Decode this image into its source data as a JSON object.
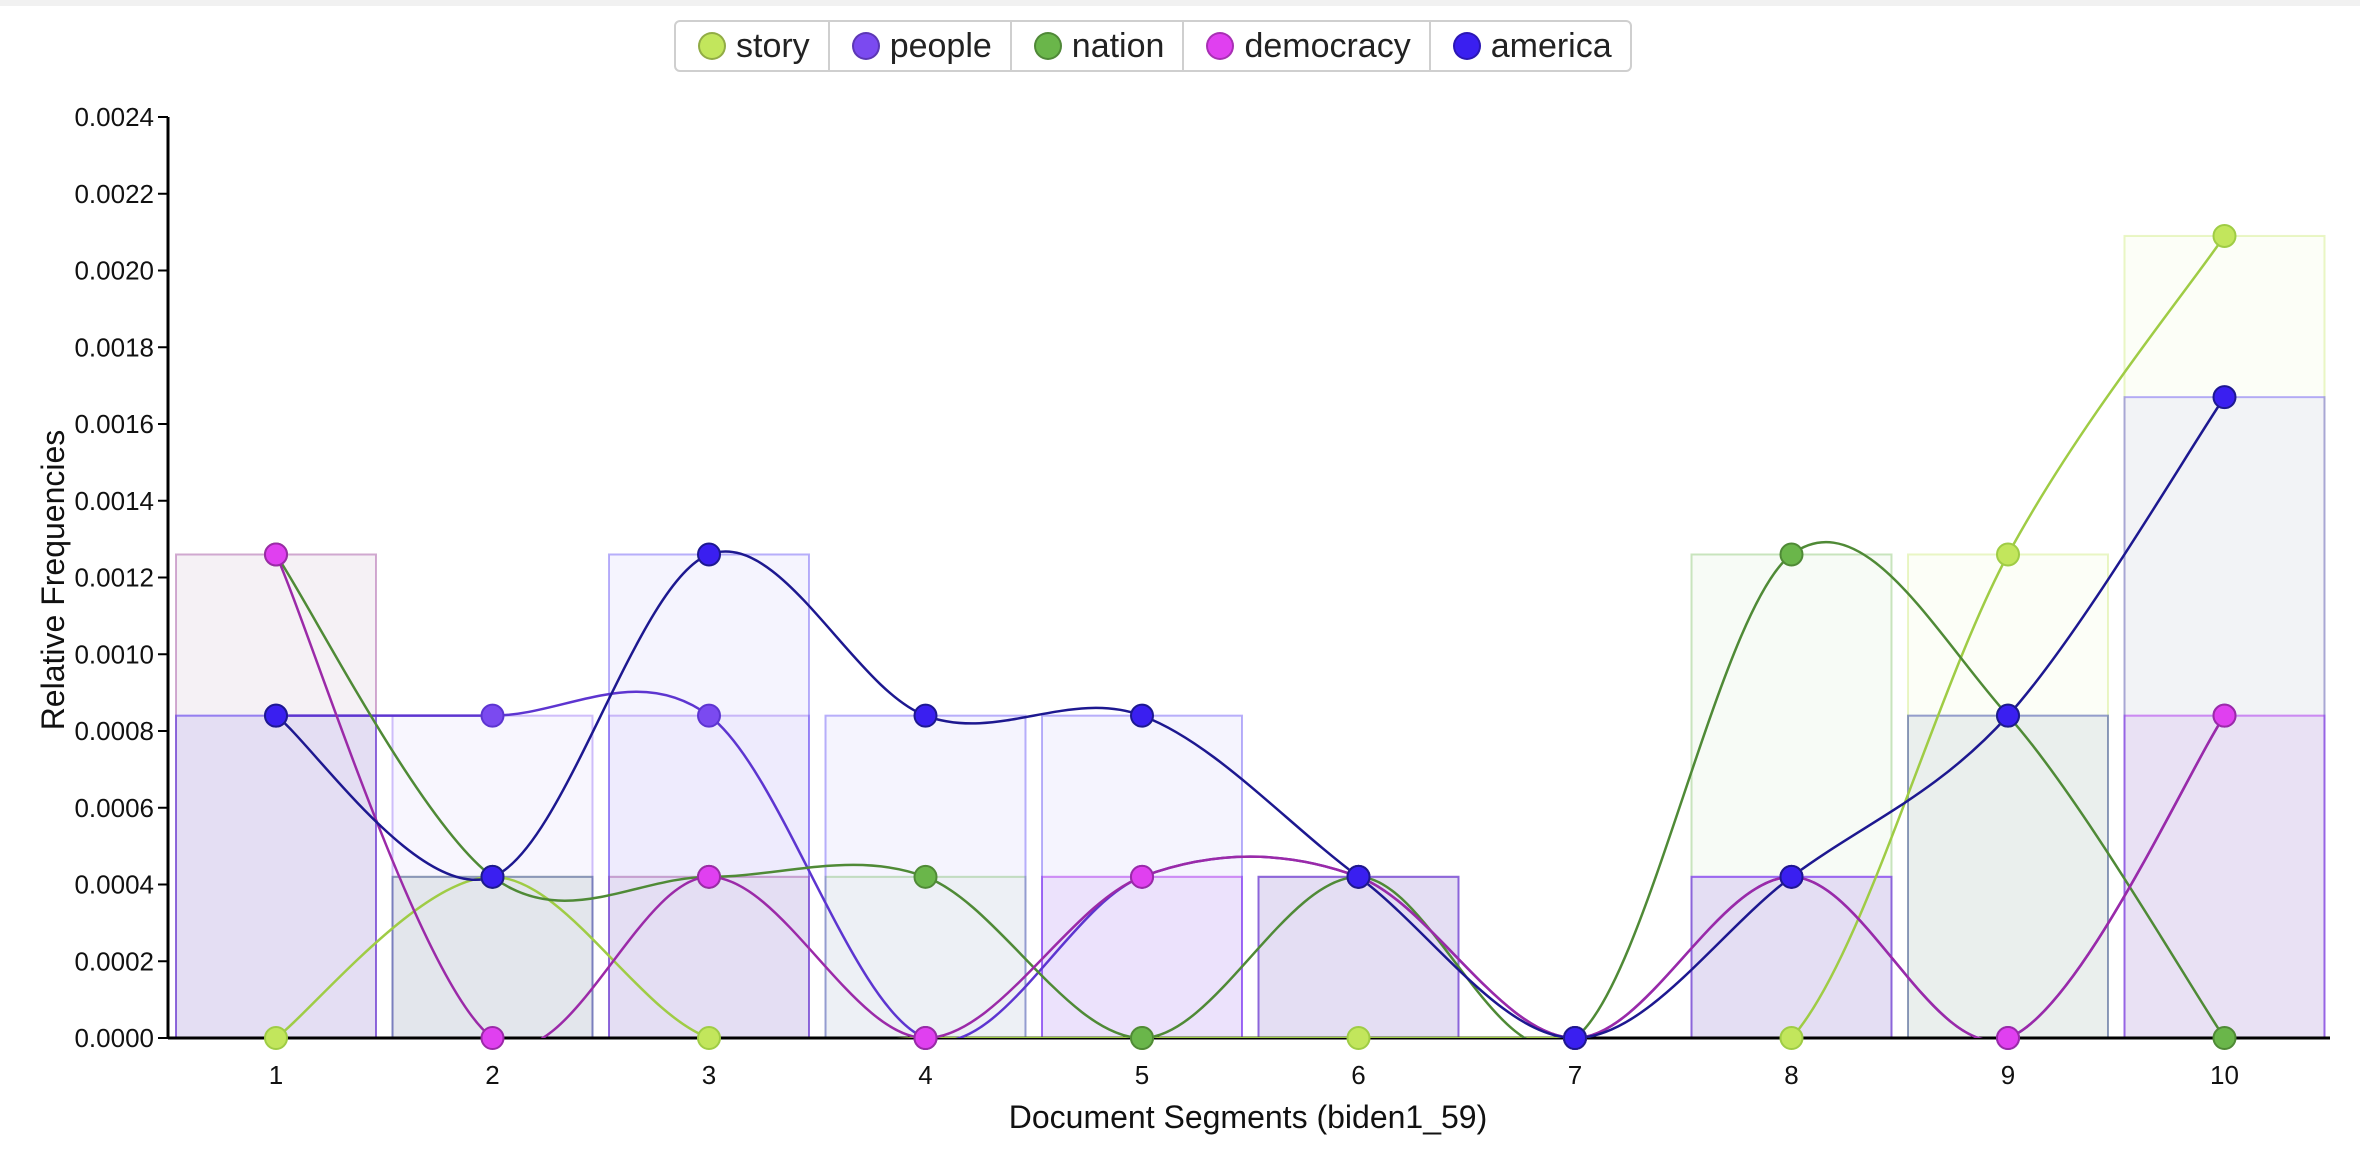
{
  "chart_data": {
    "type": "line",
    "xlabel": "Document Segments (biden1_59)",
    "ylabel": "Relative Frequencies",
    "ylim": [
      0,
      0.0024
    ],
    "y_ticks": [
      "0.0000",
      "0.0002",
      "0.0004",
      "0.0006",
      "0.0008",
      "0.0010",
      "0.0012",
      "0.0014",
      "0.0016",
      "0.0018",
      "0.0020",
      "0.0022",
      "0.0024"
    ],
    "categories": [
      "1",
      "2",
      "3",
      "4",
      "5",
      "6",
      "7",
      "8",
      "9",
      "10"
    ],
    "legend_position": "top-center",
    "grid": false,
    "series": [
      {
        "name": "story",
        "color": "#c2e65c",
        "line_color": "#9fcc45",
        "values": [
          0,
          0.00042,
          0,
          0,
          0,
          0,
          0,
          0,
          0.00126,
          0.00209
        ]
      },
      {
        "name": "people",
        "color": "#7b4af0",
        "line_color": "#5d35d0",
        "values": [
          0.00084,
          0.00084,
          0.00084,
          0,
          0.00042,
          0.00042,
          0,
          0.00042,
          0,
          0.00084
        ]
      },
      {
        "name": "nation",
        "color": "#6ab64a",
        "line_color": "#4f8a36",
        "values": [
          0.00126,
          0.00042,
          0.00042,
          0.00042,
          0,
          0.00042,
          0,
          0.00126,
          0.00084,
          0
        ]
      },
      {
        "name": "democracy",
        "color": "#e040f0",
        "line_color": "#9b2aa8",
        "values": [
          0.00126,
          0,
          0.00042,
          0,
          0.00042,
          0.00042,
          0,
          0.00042,
          0,
          0.00084
        ]
      },
      {
        "name": "america",
        "color": "#3a1ff0",
        "line_color": "#1d1890",
        "values": [
          0.00084,
          0.00042,
          0.00126,
          0.00084,
          0.00084,
          0.00042,
          0,
          0.00042,
          0.00084,
          0.00167
        ]
      }
    ]
  }
}
